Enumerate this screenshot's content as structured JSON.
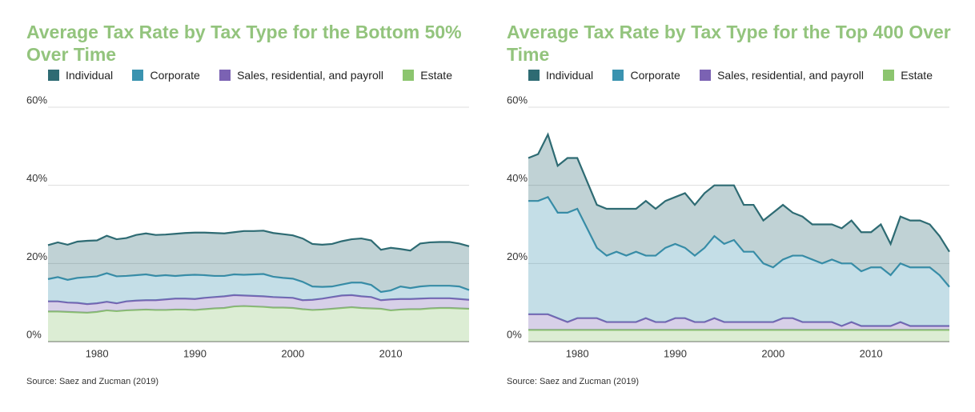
{
  "chart_data": [
    {
      "type": "stacked-area",
      "title": "Average Tax Rate by Tax Type for the Bottom 50% Over Time",
      "source": "Source: Saez and Zucman (2019)",
      "x": [
        1975,
        1976,
        1977,
        1978,
        1979,
        1980,
        1981,
        1982,
        1983,
        1984,
        1985,
        1986,
        1987,
        1988,
        1989,
        1990,
        1991,
        1992,
        1993,
        1994,
        1995,
        1996,
        1997,
        1998,
        1999,
        2000,
        2001,
        2002,
        2003,
        2004,
        2005,
        2006,
        2007,
        2008,
        2009,
        2010,
        2011,
        2012,
        2013,
        2014,
        2015,
        2016,
        2017,
        2018
      ],
      "xlim": [
        1975,
        2018
      ],
      "xticks": [
        1980,
        1990,
        2000,
        2010
      ],
      "ylim": [
        0,
        60
      ],
      "yticks": [
        {
          "value": 0,
          "label": "0%"
        },
        {
          "value": 20,
          "label": "20%"
        },
        {
          "value": 40,
          "label": "40%"
        },
        {
          "value": 60,
          "label": "60%"
        }
      ],
      "grid": true,
      "series": [
        {
          "name": "Individual",
          "color": "#2e6b73",
          "values": [
            8.7,
            8.9,
            9.0,
            9.3,
            9.3,
            9.2,
            9.6,
            9.5,
            9.7,
            10.3,
            10.5,
            10.5,
            10.4,
            10.8,
            10.8,
            10.8,
            10.9,
            11.0,
            10.9,
            10.8,
            11.2,
            11.1,
            11.1,
            11.2,
            11.2,
            11.1,
            11.1,
            10.9,
            10.8,
            10.9,
            11.1,
            11.1,
            11.3,
            11.4,
            10.8,
            10.9,
            9.6,
            9.6,
            11.0,
            11.1,
            11.2,
            11.2,
            11.0,
            11.2
          ]
        },
        {
          "name": "Corporate",
          "color": "#3a93b0",
          "values": [
            5.7,
            6.2,
            5.8,
            6.4,
            6.9,
            6.9,
            7.3,
            6.9,
            6.5,
            6.5,
            6.6,
            6.2,
            6.2,
            5.8,
            6.0,
            6.2,
            5.8,
            5.4,
            5.2,
            5.3,
            5.3,
            5.5,
            5.7,
            5.2,
            5.0,
            4.9,
            4.7,
            3.4,
            3.0,
            2.7,
            2.8,
            3.2,
            3.5,
            3.1,
            2.1,
            2.3,
            3.2,
            2.8,
            3.1,
            3.2,
            3.2,
            3.2,
            3.2,
            2.5
          ]
        },
        {
          "name": "Sales, residential, and payroll",
          "color": "#7b62b3",
          "values": [
            2.6,
            2.6,
            2.4,
            2.4,
            2.2,
            2.2,
            2.2,
            2.0,
            2.3,
            2.4,
            2.4,
            2.5,
            2.7,
            2.8,
            2.8,
            2.8,
            2.9,
            2.9,
            3.0,
            2.9,
            2.7,
            2.7,
            2.7,
            2.7,
            2.6,
            2.6,
            2.3,
            2.6,
            2.8,
            3.0,
            3.2,
            3.1,
            3.0,
            2.9,
            2.2,
            2.8,
            2.7,
            2.6,
            2.7,
            2.6,
            2.5,
            2.5,
            2.4,
            2.3
          ]
        },
        {
          "name": "Estate",
          "color": "#8cc56f",
          "values": [
            7.7,
            7.7,
            7.6,
            7.5,
            7.4,
            7.6,
            8.0,
            7.8,
            8.0,
            8.1,
            8.2,
            8.1,
            8.1,
            8.2,
            8.2,
            8.1,
            8.3,
            8.5,
            8.6,
            9.0,
            9.1,
            9.0,
            8.9,
            8.7,
            8.7,
            8.6,
            8.3,
            8.1,
            8.2,
            8.4,
            8.6,
            8.8,
            8.6,
            8.5,
            8.4,
            8.0,
            8.2,
            8.3,
            8.3,
            8.5,
            8.6,
            8.6,
            8.5,
            8.4
          ]
        }
      ]
    },
    {
      "type": "stacked-area",
      "title": "Average Tax Rate by Tax Type for the Top 400 Over Time",
      "source": "Source: Saez and Zucman (2019)",
      "x": [
        1975,
        1976,
        1977,
        1978,
        1979,
        1980,
        1981,
        1982,
        1983,
        1984,
        1985,
        1986,
        1987,
        1988,
        1989,
        1990,
        1991,
        1992,
        1993,
        1994,
        1995,
        1996,
        1997,
        1998,
        1999,
        2000,
        2001,
        2002,
        2003,
        2004,
        2005,
        2006,
        2007,
        2008,
        2009,
        2010,
        2011,
        2012,
        2013,
        2014,
        2015,
        2016,
        2017,
        2018
      ],
      "xlim": [
        1975,
        2018
      ],
      "xticks": [
        1980,
        1990,
        2000,
        2010
      ],
      "ylim": [
        0,
        60
      ],
      "yticks": [
        {
          "value": 0,
          "label": "0%"
        },
        {
          "value": 20,
          "label": "20%"
        },
        {
          "value": 40,
          "label": "40%"
        },
        {
          "value": 60,
          "label": "60%"
        }
      ],
      "grid": true,
      "series": [
        {
          "name": "Individual",
          "color": "#2e6b73",
          "values": [
            11,
            12,
            16,
            12,
            14,
            13,
            12,
            11,
            12,
            11,
            12,
            11,
            14,
            12,
            12,
            12,
            14,
            13,
            14,
            13,
            15,
            14,
            12,
            12,
            11,
            14,
            14,
            11,
            10,
            9,
            10,
            9,
            9,
            11,
            10,
            9,
            11,
            8,
            12,
            12,
            12,
            11,
            10,
            9
          ]
        },
        {
          "name": "Corporate",
          "color": "#3a93b0",
          "values": [
            29,
            29,
            30,
            27,
            28,
            28,
            23,
            18,
            17,
            18,
            17,
            18,
            16,
            17,
            19,
            19,
            18,
            17,
            19,
            21,
            20,
            21,
            18,
            18,
            15,
            14,
            15,
            16,
            17,
            16,
            15,
            16,
            16,
            15,
            14,
            15,
            15,
            13,
            15,
            15,
            15,
            15,
            13,
            10
          ]
        },
        {
          "name": "Sales, residential, and payroll",
          "color": "#7b62b3",
          "values": [
            4,
            4,
            4,
            3,
            2,
            3,
            3,
            3,
            2,
            2,
            2,
            2,
            3,
            2,
            2,
            3,
            3,
            2,
            2,
            3,
            2,
            2,
            2,
            2,
            2,
            2,
            3,
            3,
            2,
            2,
            2,
            2,
            1,
            2,
            1,
            1,
            1,
            1,
            2,
            1,
            1,
            1,
            1,
            1
          ]
        },
        {
          "name": "Estate",
          "color": "#8cc56f",
          "values": [
            3,
            3,
            3,
            3,
            3,
            3,
            3,
            3,
            3,
            3,
            3,
            3,
            3,
            3,
            3,
            3,
            3,
            3,
            3,
            3,
            3,
            3,
            3,
            3,
            3,
            3,
            3,
            3,
            3,
            3,
            3,
            3,
            3,
            3,
            3,
            3,
            3,
            3,
            3,
            3,
            3,
            3,
            3,
            3
          ]
        }
      ]
    }
  ]
}
